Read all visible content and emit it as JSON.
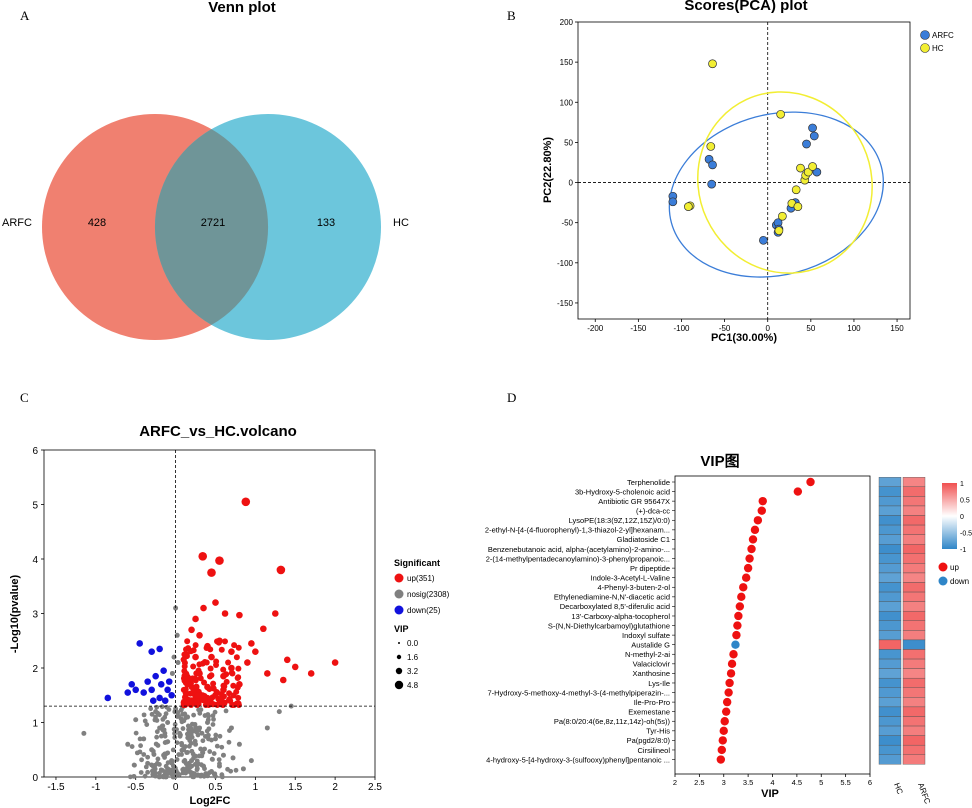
{
  "colors": {
    "arfc": "#f08070",
    "hc": "#6cc6dc",
    "overlap": "#6f9598",
    "up": "#ee1111",
    "nosig": "#808080",
    "down": "#1111dd",
    "pca_arfc": "#3b7dd8",
    "pca_hc": "#f2ee33",
    "vip_down": "#2f86c8",
    "heat_high": "#f05050",
    "heat_low": "#2f86c8"
  },
  "panels": {
    "a": "A",
    "b": "B",
    "c": "C",
    "d": "D"
  },
  "chart_data": [
    {
      "type": "venn",
      "title": "Venn plot",
      "sets": [
        {
          "name": "ARFC",
          "only": "428"
        },
        {
          "name": "HC",
          "only": "133"
        }
      ],
      "intersection": "2721"
    },
    {
      "type": "scatter",
      "title": "Scores(PCA) plot",
      "xlabel": "PC1(30.00%)",
      "ylabel": "PC2(22.80%)",
      "xlim": [
        -220,
        165
      ],
      "ylim": [
        -170,
        200
      ],
      "xticks": [
        -200,
        -150,
        -100,
        -50,
        0,
        50,
        100,
        150
      ],
      "yticks": [
        -150,
        -100,
        -50,
        0,
        50,
        100,
        150,
        200
      ],
      "legend": [
        "ARFC",
        "HC"
      ],
      "series": [
        {
          "name": "ARFC",
          "points": [
            [
              -110,
              -17
            ],
            [
              -110,
              -24
            ],
            [
              -68,
              29
            ],
            [
              -64,
              22
            ],
            [
              -65,
              -2
            ],
            [
              -5,
              -72
            ],
            [
              10,
              -53
            ],
            [
              12,
              -50
            ],
            [
              13,
              -58
            ],
            [
              27,
              -32
            ],
            [
              32,
              -25
            ],
            [
              45,
              48
            ],
            [
              52,
              68
            ],
            [
              54,
              58
            ],
            [
              57,
              13
            ],
            [
              12,
              -62
            ]
          ]
        },
        {
          "name": "HC",
          "points": [
            [
              -64,
              148
            ],
            [
              -66,
              45
            ],
            [
              -90,
              -29
            ],
            [
              -92,
              -30
            ],
            [
              15,
              85
            ],
            [
              17,
              -42
            ],
            [
              13,
              -60
            ],
            [
              28,
              -26
            ],
            [
              35,
              -30
            ],
            [
              33,
              -9
            ],
            [
              38,
              18
            ],
            [
              43,
              3
            ],
            [
              44,
              9
            ],
            [
              47,
              13
            ],
            [
              52,
              20
            ]
          ]
        }
      ],
      "ellipses": [
        {
          "name": "ARFC",
          "cx": 10,
          "cy": -15,
          "rx": 126,
          "ry": 100,
          "rotate": -15
        },
        {
          "name": "HC",
          "cx": 20,
          "cy": 0,
          "rx": 100,
          "ry": 114,
          "rotate": -25
        }
      ]
    },
    {
      "type": "volcano",
      "title": "ARFC_vs_HC.volcano",
      "xlabel": "Log2FC",
      "ylabel": "-Log10(pvalue)",
      "xlim": [
        -1.65,
        2.5
      ],
      "ylim": [
        0,
        6
      ],
      "xticks": [
        "-1.5",
        "-1",
        "-0.5",
        "0",
        "0.5",
        "1",
        "1.5",
        "2",
        "2.5"
      ],
      "yticks": [
        0,
        1,
        2,
        3,
        4,
        5,
        6
      ],
      "threshold_y": 1.3,
      "threshold_x": 0,
      "legend_title": "Significant",
      "legend": [
        {
          "key": "up",
          "label": "up(351)"
        },
        {
          "key": "nosig",
          "label": "nosig(2308)"
        },
        {
          "key": "down",
          "label": "down(25)"
        }
      ],
      "vip_title": "VIP",
      "vip_legend": [
        "0.0",
        "1.6",
        "3.2",
        "4.8"
      ],
      "up_points": [
        [
          0.88,
          5.05
        ],
        [
          1.32,
          3.8
        ],
        [
          0.34,
          4.05
        ],
        [
          0.55,
          3.97
        ],
        [
          0.45,
          3.75
        ],
        [
          1.25,
          3.0
        ],
        [
          0.8,
          2.97
        ],
        [
          1.1,
          2.72
        ],
        [
          0.95,
          2.45
        ],
        [
          1.5,
          2.02
        ],
        [
          1.4,
          2.15
        ],
        [
          1.7,
          1.9
        ],
        [
          2.0,
          2.1
        ],
        [
          1.35,
          1.78
        ],
        [
          1.15,
          1.9
        ],
        [
          0.7,
          2.0
        ],
        [
          0.6,
          1.85
        ],
        [
          0.4,
          2.4
        ],
        [
          0.3,
          2.6
        ],
        [
          0.35,
          3.1
        ],
        [
          0.5,
          3.2
        ],
        [
          0.62,
          3.0
        ],
        [
          0.25,
          2.9
        ],
        [
          0.2,
          2.7
        ],
        [
          0.45,
          2.2
        ],
        [
          0.55,
          2.5
        ],
        [
          0.3,
          1.9
        ],
        [
          0.4,
          1.65
        ],
        [
          0.22,
          1.55
        ],
        [
          0.6,
          1.6
        ],
        [
          0.7,
          2.3
        ],
        [
          0.8,
          1.7
        ],
        [
          0.9,
          2.1
        ],
        [
          1.0,
          2.3
        ],
        [
          0.35,
          1.45
        ],
        [
          0.5,
          1.5
        ],
        [
          0.25,
          2.2
        ],
        [
          0.15,
          1.7
        ],
        [
          0.18,
          1.4
        ],
        [
          0.28,
          1.5
        ]
      ],
      "down_points": [
        [
          -0.45,
          2.45
        ],
        [
          -0.3,
          2.3
        ],
        [
          -0.2,
          2.35
        ],
        [
          -0.5,
          1.6
        ],
        [
          -0.35,
          1.75
        ],
        [
          -0.25,
          1.85
        ],
        [
          -0.15,
          1.95
        ],
        [
          -0.55,
          1.7
        ],
        [
          -0.4,
          1.55
        ],
        [
          -0.1,
          1.6
        ],
        [
          -0.2,
          1.45
        ],
        [
          -0.85,
          1.45
        ],
        [
          -0.3,
          1.6
        ],
        [
          -0.13,
          1.4
        ],
        [
          -0.18,
          1.7
        ],
        [
          -0.05,
          1.5
        ],
        [
          -0.6,
          1.55
        ],
        [
          -0.08,
          1.75
        ],
        [
          -0.28,
          1.4
        ]
      ],
      "nosig_points": [
        [
          -1.15,
          0.8
        ],
        [
          -0.6,
          0.6
        ],
        [
          -0.4,
          0.7
        ],
        [
          -0.3,
          0.5
        ],
        [
          -0.2,
          0.9
        ],
        [
          -0.15,
          0.4
        ],
        [
          -0.1,
          1.0
        ],
        [
          -0.05,
          0.3
        ],
        [
          0.05,
          0.8
        ],
        [
          0.1,
          0.5
        ],
        [
          0.15,
          1.1
        ],
        [
          0.2,
          0.3
        ],
        [
          0.25,
          0.6
        ],
        [
          0.3,
          0.9
        ],
        [
          0.35,
          0.2
        ],
        [
          0.4,
          1.0
        ],
        [
          0.5,
          0.7
        ],
        [
          0.6,
          0.4
        ],
        [
          0.7,
          0.9
        ],
        [
          0.8,
          0.6
        ],
        [
          0.95,
          0.3
        ],
        [
          1.15,
          0.9
        ],
        [
          1.3,
          1.2
        ],
        [
          1.45,
          1.3
        ],
        [
          -0.5,
          1.05
        ],
        [
          -0.25,
          1.2
        ],
        [
          0.0,
          1.25
        ],
        [
          0.1,
          0.1
        ],
        [
          -0.1,
          0.15
        ],
        [
          0.45,
          0.1
        ],
        [
          -0.02,
          2.2
        ],
        [
          0.02,
          2.6
        ],
        [
          0.0,
          3.1
        ],
        [
          -0.04,
          1.9
        ],
        [
          0.03,
          2.1
        ],
        [
          0.2,
          0.2
        ],
        [
          0.55,
          0.2
        ],
        [
          0.72,
          0.35
        ],
        [
          0.85,
          0.15
        ],
        [
          -0.35,
          0.25
        ]
      ]
    },
    {
      "type": "dot",
      "title": "VIP图",
      "xlabel": "VIP",
      "xlim": [
        2,
        6
      ],
      "xticks": [
        "2",
        "2.5",
        "3",
        "3.5",
        "4",
        "4.5",
        "5",
        "5.5",
        "6"
      ],
      "legend": [
        "up",
        "down"
      ],
      "heatmap_columns": [
        "HC",
        "ARFC"
      ],
      "colorbar": [
        "1",
        "0.5",
        "0",
        "-0.5",
        "-1"
      ],
      "items": [
        {
          "name": "Terphenolide",
          "vip": 4.78,
          "dir": "up"
        },
        {
          "name": "3b-Hydroxy-5-cholenoic acid",
          "vip": 4.52,
          "dir": "up"
        },
        {
          "name": "Antibiotic GR 95647X",
          "vip": 3.8,
          "dir": "up"
        },
        {
          "name": "(+)-dca-cc",
          "vip": 3.78,
          "dir": "up"
        },
        {
          "name": "LysoPE(18:3(9Z,12Z,15Z)/0:0)",
          "vip": 3.7,
          "dir": "up"
        },
        {
          "name": "2-ethyl-N-[4-(4-fluorophenyl)-1,3-thiazol-2-yl]hexanam...",
          "vip": 3.64,
          "dir": "up"
        },
        {
          "name": "Gladiatoside C1",
          "vip": 3.6,
          "dir": "up"
        },
        {
          "name": "Benzenebutanoic acid, alpha-(acetylamino)-2-amino-...",
          "vip": 3.57,
          "dir": "up"
        },
        {
          "name": "2-(14-methylpentadecanoylamino)-3-phenylpropanoic...",
          "vip": 3.53,
          "dir": "up"
        },
        {
          "name": "Pr dipeptide",
          "vip": 3.5,
          "dir": "up"
        },
        {
          "name": "Indole-3-Acetyl-L-Valine",
          "vip": 3.46,
          "dir": "up"
        },
        {
          "name": "4-Phenyl-3-buten-2-ol",
          "vip": 3.4,
          "dir": "up"
        },
        {
          "name": "Ethylenediamine-N,N'-diacetic acid",
          "vip": 3.36,
          "dir": "up"
        },
        {
          "name": "Decarboxylated 8,5'-diferulic acid",
          "vip": 3.33,
          "dir": "up"
        },
        {
          "name": "13'-Carboxy-alpha-tocopherol",
          "vip": 3.3,
          "dir": "up"
        },
        {
          "name": "S-(N,N-Diethylcarbamoyl)glutathione",
          "vip": 3.28,
          "dir": "up"
        },
        {
          "name": "Indoxyl sulfate",
          "vip": 3.26,
          "dir": "up"
        },
        {
          "name": "Austalide G",
          "vip": 3.24,
          "dir": "down"
        },
        {
          "name": "N-methyl-2-ai",
          "vip": 3.2,
          "dir": "up"
        },
        {
          "name": "Valaciclovir",
          "vip": 3.17,
          "dir": "up"
        },
        {
          "name": "Xanthosine",
          "vip": 3.15,
          "dir": "up"
        },
        {
          "name": "Lys-Ile",
          "vip": 3.12,
          "dir": "up"
        },
        {
          "name": "7-Hydroxy-5-methoxy-4-methyl-3-(4-methylpiperazin-...",
          "vip": 3.1,
          "dir": "up"
        },
        {
          "name": "Ile-Pro-Pro",
          "vip": 3.07,
          "dir": "up"
        },
        {
          "name": "Exemestane",
          "vip": 3.05,
          "dir": "up"
        },
        {
          "name": "Pa(8:0/20:4(6e,8z,11z,14z)-oh(5s))",
          "vip": 3.02,
          "dir": "up"
        },
        {
          "name": "Tyr-His",
          "vip": 3.0,
          "dir": "up"
        },
        {
          "name": "Pa(pgd2/8:0)",
          "vip": 2.98,
          "dir": "up"
        },
        {
          "name": "Cirsilineol",
          "vip": 2.96,
          "dir": "up"
        },
        {
          "name": "4-hydroxy-5-[4-hydroxy-3-(sulfooxy)phenyl]pentanoic ...",
          "vip": 2.94,
          "dir": "up"
        }
      ]
    }
  ]
}
